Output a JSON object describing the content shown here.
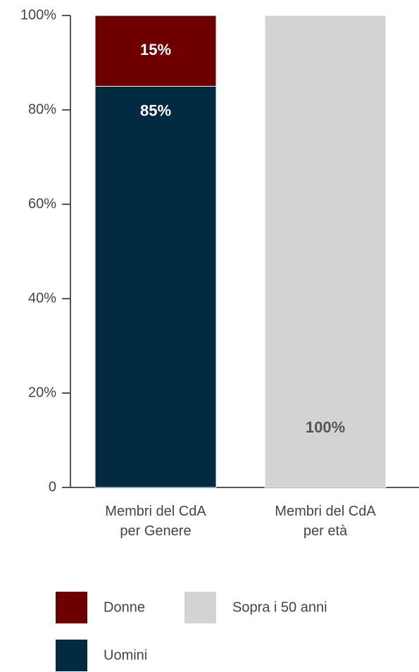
{
  "chart_data": {
    "type": "stacked-bar",
    "categories": [
      "Membri del CdA\nper Genere",
      "Membri del CdA\nper età"
    ],
    "series": [
      {
        "name": "Uomini",
        "color": "#022a40",
        "values": [
          85,
          null
        ],
        "value_labels": [
          "85%",
          null
        ]
      },
      {
        "name": "Donne",
        "color": "#6e0000",
        "values": [
          15,
          null
        ],
        "value_labels": [
          "15%",
          null
        ]
      },
      {
        "name": "Sopra i 50 anni",
        "color": "#d3d3d3",
        "values": [
          null,
          100
        ],
        "value_labels": [
          null,
          "100%"
        ]
      }
    ],
    "ylim": [
      0,
      100
    ],
    "yticks": [
      0,
      {
        "value": 20,
        "label": "20%"
      },
      {
        "value": 40,
        "label": "40%"
      },
      {
        "value": 60,
        "label": "60%"
      },
      {
        "value": 80,
        "label": "80%"
      },
      {
        "value": 100,
        "label": "100%"
      }
    ],
    "grid": false
  }
}
